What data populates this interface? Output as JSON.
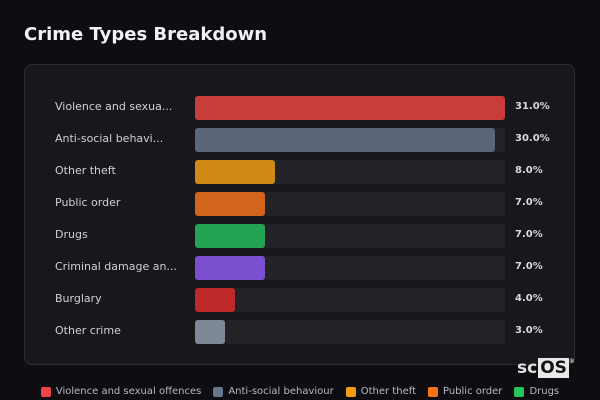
{
  "title": "Crime Types Breakdown",
  "logo": {
    "text_a": "sc",
    "text_b": "OS",
    "mark": "®"
  },
  "chart_data": {
    "type": "bar",
    "orientation": "horizontal",
    "title": "Crime Types Breakdown",
    "categories": [
      "Violence and sexua...",
      "Anti-social behavi...",
      "Other theft",
      "Public order",
      "Drugs",
      "Criminal damage an...",
      "Burglary",
      "Other crime"
    ],
    "values": [
      31.0,
      30.0,
      8.0,
      7.0,
      7.0,
      7.0,
      4.0,
      3.0
    ],
    "value_labels": [
      "31.0%",
      "30.0%",
      "8.0%",
      "7.0%",
      "7.0%",
      "7.0%",
      "4.0%",
      "3.0%"
    ],
    "colors": [
      "#c83c3c",
      "#5b6679",
      "#d08a15",
      "#d2651b",
      "#22a454",
      "#7a50d0",
      "#bf2828",
      "#7e8897"
    ],
    "xlim": [
      0,
      31
    ],
    "unit": "%",
    "grid": false,
    "legend_position": "bottom",
    "legend": [
      {
        "label": "Violence and sexual offences",
        "color": "#ef4444"
      },
      {
        "label": "Anti-social behaviour",
        "color": "#64748b"
      },
      {
        "label": "Other theft",
        "color": "#f59e0b"
      },
      {
        "label": "Public order",
        "color": "#f97316"
      },
      {
        "label": "Drugs",
        "color": "#22c55e"
      }
    ]
  }
}
